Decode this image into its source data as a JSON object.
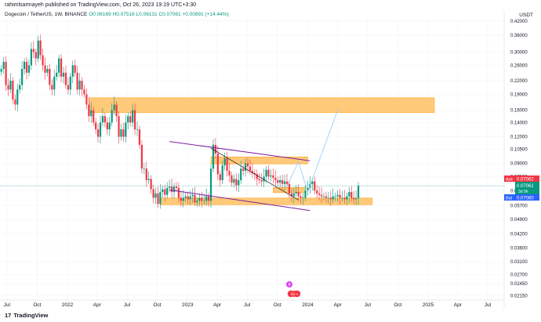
{
  "header": {
    "publisher": "rahimlsarmayeh published on TradingView.com, Oct 26, 2023 19:19 UTC+3:30",
    "symbol": "Dogecoin / TetherUS, 1W, BINANCE",
    "ohlc": "O0.06169 H0.07516 L0.06131 C0.07061 +0.00891 (+14.44%)",
    "currency": "USDT"
  },
  "footer": {
    "logo_text": "TradingView",
    "logo_mark": "17"
  },
  "price_labels": {
    "ask_tag": "Ask",
    "ask_value": "0.07062",
    "last_value": "0.07061",
    "countdown": "3d 9h",
    "bid_tag": "Bid",
    "bid_value": "0.07060"
  },
  "colors": {
    "up": "#089981",
    "down": "#f23645",
    "zone": "#ffb74d",
    "channel": "#7b1fa2",
    "projection": "#90caf9"
  },
  "icons": [
    "lightning-icon",
    "event-flags-icon"
  ],
  "chart_data": {
    "type": "candlestick",
    "y_scale": "log",
    "ylim": [
      0.0205,
      0.43
    ],
    "yticks": [
      "0.42000",
      "0.36000",
      "0.30000",
      "0.26000",
      "0.22000",
      "0.19000",
      "0.16000",
      "0.14000",
      "0.12000",
      "0.10500",
      "0.09000",
      "0.07800",
      "0.06700",
      "0.05700",
      "0.04900",
      "0.04200",
      "0.03600",
      "0.03100",
      "0.02700",
      "0.02450",
      "0.02150"
    ],
    "xticks": [
      "Jul",
      "Oct",
      "2022",
      "Apr",
      "Jul",
      "Oct",
      "2023",
      "Apr",
      "Jul",
      "Oct",
      "2024",
      "Apr",
      "Jul",
      "Oct",
      "2025",
      "Apr",
      "Jul"
    ],
    "xtick_dates": [
      "2021-07-01",
      "2021-10-01",
      "2022-01-01",
      "2022-04-01",
      "2022-07-01",
      "2022-10-01",
      "2023-01-01",
      "2023-04-01",
      "2023-07-01",
      "2023-10-01",
      "2024-01-01",
      "2024-04-01",
      "2024-07-01",
      "2024-10-01",
      "2025-01-01",
      "2025-04-01",
      "2025-07-01"
    ],
    "xlim": [
      "2021-06-10",
      "2025-08-20"
    ],
    "candle_closes": [
      0.25,
      0.27,
      0.21,
      0.2,
      0.22,
      0.18,
      0.17,
      0.2,
      0.21,
      0.25,
      0.27,
      0.24,
      0.26,
      0.31,
      0.3,
      0.28,
      0.34,
      0.29,
      0.26,
      0.24,
      0.25,
      0.21,
      0.2,
      0.23,
      0.24,
      0.28,
      0.23,
      0.24,
      0.21,
      0.2,
      0.23,
      0.26,
      0.24,
      0.2,
      0.22,
      0.2,
      0.19,
      0.17,
      0.15,
      0.16,
      0.14,
      0.13,
      0.12,
      0.14,
      0.15,
      0.14,
      0.13,
      0.14,
      0.16,
      0.17,
      0.15,
      0.12,
      0.13,
      0.12,
      0.14,
      0.15,
      0.14,
      0.16,
      0.13,
      0.13,
      0.11,
      0.085,
      0.085,
      0.075,
      0.076,
      0.068,
      0.062,
      0.065,
      0.058,
      0.066,
      0.068,
      0.064,
      0.069,
      0.07,
      0.066,
      0.07,
      0.069,
      0.062,
      0.06,
      0.062,
      0.063,
      0.061,
      0.063,
      0.064,
      0.059,
      0.06,
      0.062,
      0.06,
      0.06,
      0.063,
      0.06,
      0.085,
      0.11,
      0.1,
      0.08,
      0.075,
      0.088,
      0.095,
      0.083,
      0.079,
      0.073,
      0.076,
      0.071,
      0.075,
      0.085,
      0.083,
      0.09,
      0.087,
      0.083,
      0.081,
      0.08,
      0.076,
      0.075,
      0.074,
      0.078,
      0.084,
      0.078,
      0.079,
      0.077,
      0.075,
      0.073,
      0.075,
      0.072,
      0.074,
      0.072,
      0.065,
      0.063,
      0.065,
      0.066,
      0.063,
      0.062,
      0.062,
      0.067,
      0.069,
      0.072,
      0.074,
      0.067,
      0.065,
      0.064,
      0.063,
      0.063,
      0.062,
      0.062,
      0.061,
      0.063,
      0.063,
      0.064,
      0.062,
      0.062,
      0.061,
      0.063,
      0.066,
      0.062,
      0.061,
      0.0617,
      0.0706
    ],
    "candle_start": "2021-06-14",
    "zones": [
      {
        "from": "2022-03-07",
        "to": "2025-01-20",
        "bottom": 0.156,
        "top": 0.183
      },
      {
        "from": "2023-03-13",
        "to": "2024-01-01",
        "bottom": 0.0895,
        "top": 0.0965
      },
      {
        "from": "2022-10-10",
        "to": "2024-07-15",
        "bottom": 0.0575,
        "top": 0.0618
      },
      {
        "from": "2023-09-18",
        "to": "2023-12-25",
        "bottom": 0.0655,
        "top": 0.0693
      }
    ],
    "lines": [
      {
        "from": [
          "2022-11-07",
          0.114
        ],
        "to": [
          "2024-01-08",
          0.0925
        ],
        "style": "channel"
      },
      {
        "from": [
          "2022-11-07",
          0.0675
        ],
        "to": [
          "2024-01-08",
          0.054
        ],
        "style": "channel"
      },
      {
        "from": [
          "2023-03-13",
          0.106
        ],
        "to": [
          "2023-12-04",
          0.0605
        ],
        "style": "trend"
      }
    ],
    "projection": [
      [
        "2023-10-30",
        0.0706
      ],
      [
        "2023-12-04",
        0.0915
      ],
      [
        "2024-01-01",
        0.066
      ],
      [
        "2024-04-01",
        0.16
      ]
    ]
  }
}
